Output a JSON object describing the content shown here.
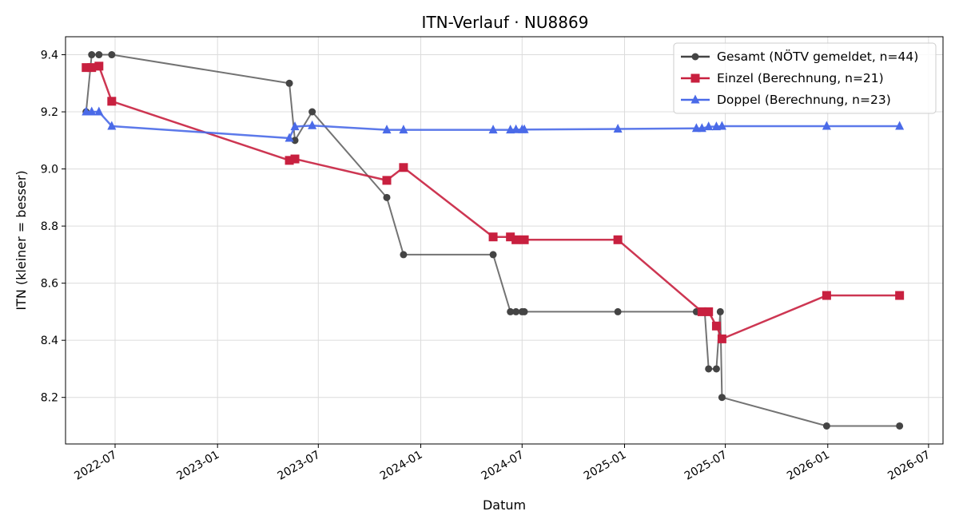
{
  "chart_data": {
    "type": "line",
    "title": "ITN-Verlauf · NU8869",
    "xlabel": "Datum",
    "ylabel": "ITN  (kleiner = besser)",
    "x_ticks": [
      "2022-07",
      "2023-01",
      "2023-07",
      "2024-01",
      "2024-07",
      "2025-01",
      "2025-07",
      "2026-01",
      "2026-07"
    ],
    "y_ticks": [
      8.2,
      8.4,
      8.6,
      8.8,
      9.0,
      9.2,
      9.4
    ],
    "xlim": [
      "2022-04-03",
      "2026-07-27"
    ],
    "ylim": [
      8.037,
      9.463
    ],
    "grid": true,
    "legend_position": "top-right",
    "series": [
      {
        "name": "Gesamt (NÖTV gemeldet, n=44)",
        "color": "#444444",
        "marker": "circle",
        "points": [
          [
            "2022-05-10",
            9.2
          ],
          [
            "2022-05-20",
            9.4
          ],
          [
            "2022-06-02",
            9.4
          ],
          [
            "2022-06-25",
            9.4
          ],
          [
            "2023-05-10",
            9.3
          ],
          [
            "2023-05-20",
            9.1
          ],
          [
            "2023-06-20",
            9.2
          ],
          [
            "2023-11-01",
            8.9
          ],
          [
            "2023-12-01",
            8.7
          ],
          [
            "2024-05-10",
            8.7
          ],
          [
            "2024-06-10",
            8.5
          ],
          [
            "2024-06-20",
            8.5
          ],
          [
            "2024-07-01",
            8.5
          ],
          [
            "2024-07-05",
            8.5
          ],
          [
            "2024-12-20",
            8.5
          ],
          [
            "2025-05-10",
            8.5
          ],
          [
            "2025-05-25",
            8.5
          ],
          [
            "2025-06-01",
            8.3
          ],
          [
            "2025-06-15",
            8.3
          ],
          [
            "2025-06-22",
            8.5
          ],
          [
            "2025-06-25",
            8.2
          ],
          [
            "2025-12-30",
            8.1
          ],
          [
            "2026-05-10",
            8.1
          ]
        ]
      },
      {
        "name": "Einzel (Berechnung, n=21)",
        "color": "#c8203f",
        "marker": "square",
        "points": [
          [
            "2022-05-10",
            9.355
          ],
          [
            "2022-05-20",
            9.355
          ],
          [
            "2022-06-02",
            9.36
          ],
          [
            "2022-06-25",
            9.237
          ],
          [
            "2023-05-10",
            9.03
          ],
          [
            "2023-05-20",
            9.035
          ],
          [
            "2023-11-01",
            8.96
          ],
          [
            "2023-12-01",
            9.005
          ],
          [
            "2024-05-10",
            8.762
          ],
          [
            "2024-06-10",
            8.762
          ],
          [
            "2024-06-20",
            8.752
          ],
          [
            "2024-07-05",
            8.752
          ],
          [
            "2024-12-20",
            8.752
          ],
          [
            "2025-05-20",
            8.5
          ],
          [
            "2025-06-01",
            8.5
          ],
          [
            "2025-06-15",
            8.45
          ],
          [
            "2025-06-25",
            8.405
          ],
          [
            "2025-12-30",
            8.557
          ],
          [
            "2026-05-10",
            8.557
          ]
        ]
      },
      {
        "name": "Doppel (Berechnung, n=23)",
        "color": "#4a6ae8",
        "marker": "triangle",
        "points": [
          [
            "2022-05-10",
            9.2
          ],
          [
            "2022-05-20",
            9.2
          ],
          [
            "2022-06-02",
            9.2
          ],
          [
            "2022-06-25",
            9.15
          ],
          [
            "2023-05-10",
            9.108
          ],
          [
            "2023-05-20",
            9.148
          ],
          [
            "2023-06-20",
            9.152
          ],
          [
            "2023-11-01",
            9.137
          ],
          [
            "2023-12-01",
            9.137
          ],
          [
            "2024-05-10",
            9.137
          ],
          [
            "2024-06-10",
            9.137
          ],
          [
            "2024-06-20",
            9.138
          ],
          [
            "2024-07-01",
            9.138
          ],
          [
            "2024-07-05",
            9.138
          ],
          [
            "2024-12-20",
            9.14
          ],
          [
            "2025-05-10",
            9.142
          ],
          [
            "2025-05-20",
            9.142
          ],
          [
            "2025-06-01",
            9.148
          ],
          [
            "2025-06-15",
            9.148
          ],
          [
            "2025-06-25",
            9.15
          ],
          [
            "2025-12-30",
            9.15
          ],
          [
            "2026-05-10",
            9.15
          ]
        ]
      }
    ]
  }
}
